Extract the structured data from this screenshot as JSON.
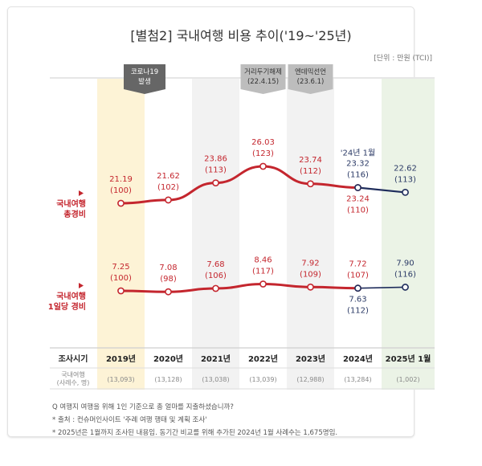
{
  "chart_data": {
    "type": "line",
    "title": "[별첨2] 국내여행 비용 추이('19~'25년)",
    "unit": "[단위 : 만원 (TCI)]",
    "categories": [
      "2019년",
      "2020년",
      "2021년",
      "2022년",
      "2023년",
      "2024년",
      "2025년 1월"
    ],
    "row_header": "조사시기",
    "sample_header": [
      "국내여행",
      "(사례수, 명)"
    ],
    "sample_sizes": [
      "(13,093)",
      "(13,128)",
      "(13,038)",
      "(13,039)",
      "(12,988)",
      "(13,284)",
      "(1,002)"
    ],
    "column_highlights": [
      {
        "index": 0,
        "color": "#fdf3d6"
      },
      {
        "index": 2,
        "color": "#f2f2f2"
      },
      {
        "index": 4,
        "color": "#f2f2f2"
      },
      {
        "index": 6,
        "color": "#ebf3e6"
      }
    ],
    "callouts": [
      {
        "index": 0.5,
        "lines": [
          "코로나19",
          "발생"
        ],
        "color": "#666666",
        "text_color": "#ffffff"
      },
      {
        "index": 3,
        "lines": [
          "거리두기해제",
          "(22.4.15)"
        ],
        "color": "#bdbdbd",
        "text_color": "#333333"
      },
      {
        "index": 4,
        "lines": [
          "엔데믹선언",
          "(23.6.1)"
        ],
        "color": "#bdbdbd",
        "text_color": "#333333"
      }
    ],
    "series": [
      {
        "name": "국내여행 총경비",
        "name_lines": [
          "국내여행",
          "총경비"
        ],
        "color": "#c4262e",
        "values": [
          21.19,
          21.62,
          23.86,
          26.03,
          23.74,
          23.24
        ],
        "index_labels": [
          "(100)",
          "(102)",
          "(113)",
          "(123)",
          "(112)",
          "(110)"
        ],
        "value_labels": [
          "21.19",
          "21.62",
          "23.86",
          "26.03",
          "23.74",
          "23.24"
        ]
      },
      {
        "name": "국내여행 총경비 (1월 비교)",
        "color": "#1f2d5c",
        "points": [
          {
            "index": 5,
            "label_prefix": "'24년 1월",
            "value": 23.32,
            "value_label": "23.32",
            "index_label": "(116)"
          },
          {
            "index": 6,
            "value": 22.62,
            "value_label": "22.62",
            "index_label": "(113)"
          }
        ]
      },
      {
        "name": "국내여행 1일당 경비",
        "name_lines": [
          "국내여행",
          "1일당 경비"
        ],
        "color": "#c4262e",
        "values": [
          7.25,
          7.08,
          7.68,
          8.46,
          7.92,
          7.72
        ],
        "index_labels": [
          "(100)",
          "(98)",
          "(106)",
          "(117)",
          "(109)",
          "(107)"
        ],
        "value_labels": [
          "7.25",
          "7.08",
          "7.68",
          "8.46",
          "7.92",
          "7.72"
        ]
      },
      {
        "name": "국내여행 1일당 경비 (1월 비교)",
        "color": "#1f2d5c",
        "points": [
          {
            "index": 5,
            "value": 7.63,
            "value_label": "7.63",
            "index_label": "(112)"
          },
          {
            "index": 6,
            "value": 7.9,
            "value_label": "7.90",
            "index_label": "(116)"
          }
        ]
      }
    ],
    "footnotes": [
      "Q 여행지 여행을 위해 1인 기준으로 총 얼마를 지출하셨습니까?",
      "* 출처 : 컨슈머인사이트 '주례 여행 행태 및 계획 조사'",
      "* 2025년은 1월까지 조사된 내용임. 동기간 비교를 위해 추가된 2024년 1월 사례수는 1,675명임."
    ]
  }
}
